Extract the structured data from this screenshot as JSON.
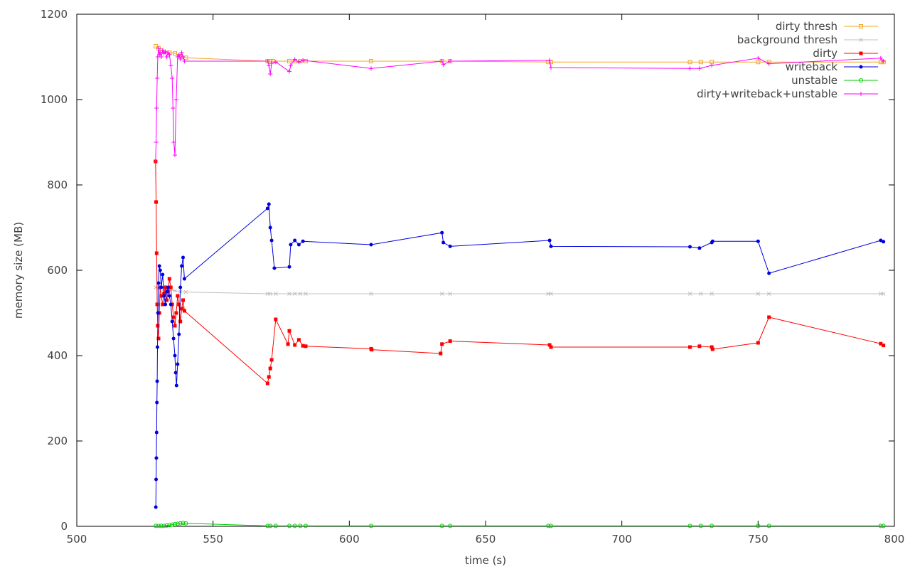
{
  "chart_data": {
    "type": "line",
    "title": "",
    "xlabel": "time (s)",
    "ylabel": "memory size (MB)",
    "xlim": [
      500,
      800
    ],
    "ylim": [
      0,
      1200
    ],
    "xticks": [
      500,
      550,
      600,
      650,
      700,
      750,
      800
    ],
    "yticks": [
      0,
      200,
      400,
      600,
      800,
      1000,
      1200
    ],
    "grid": false,
    "legend_position": "top-right",
    "series": [
      {
        "name": "dirty thresh",
        "color": "#f0a520",
        "marker": "square-open",
        "x": [
          529,
          530,
          531,
          532,
          534,
          536,
          538,
          540,
          570,
          571,
          572,
          578,
          580,
          582,
          584,
          608,
          634,
          637,
          673,
          674,
          725,
          729,
          733,
          750,
          754,
          795,
          796
        ],
        "y": [
          1125,
          1120,
          1115,
          1112,
          1110,
          1108,
          1102,
          1098,
          1090,
          1090,
          1090,
          1090,
          1090,
          1090,
          1090,
          1090,
          1090,
          1090,
          1088,
          1088,
          1088,
          1088,
          1088,
          1088,
          1088,
          1088,
          1088
        ]
      },
      {
        "name": "background thresh",
        "color": "#c0c0c0",
        "marker": "x",
        "x": [
          529,
          530,
          532,
          534,
          536,
          538,
          540,
          570,
          571,
          573,
          578,
          580,
          582,
          584,
          608,
          634,
          637,
          673,
          674,
          725,
          729,
          733,
          750,
          754,
          795,
          796
        ],
        "y": [
          560,
          558,
          556,
          554,
          552,
          550,
          549,
          545,
          545,
          545,
          545,
          545,
          545,
          545,
          545,
          545,
          545,
          545,
          545,
          545,
          545,
          545,
          545,
          545,
          545,
          545
        ]
      },
      {
        "name": "dirty",
        "color": "#ff0000",
        "marker": "square",
        "x": [
          528.9,
          529.1,
          529.3,
          529.5,
          529.7,
          530,
          530.3,
          530.6,
          531,
          531.5,
          532,
          532.5,
          533,
          533.5,
          534,
          534.5,
          535,
          535.5,
          536,
          536.5,
          537,
          537.5,
          538,
          538.5,
          539,
          539.5,
          570,
          570.5,
          571,
          571.5,
          573,
          577.5,
          578,
          580,
          581.5,
          583,
          584,
          608,
          608.2,
          633.5,
          634,
          637,
          673.5,
          674,
          725,
          728.5,
          733,
          733.3,
          750,
          754,
          795,
          796
        ],
        "y": [
          855,
          760,
          640,
          520,
          470,
          440,
          500,
          560,
          540,
          520,
          545,
          560,
          530,
          550,
          580,
          560,
          520,
          490,
          470,
          500,
          540,
          520,
          480,
          510,
          530,
          505,
          335,
          350,
          370,
          390,
          485,
          427,
          458,
          425,
          437,
          423,
          422,
          416,
          414,
          405,
          427,
          434,
          425,
          420,
          420,
          422,
          420,
          415,
          430,
          490,
          428,
          424
        ]
      },
      {
        "name": "writeback",
        "color": "#0000e0",
        "marker": "circle",
        "x": [
          529,
          529.1,
          529.2,
          529.3,
          529.4,
          529.5,
          529.6,
          529.8,
          530,
          530.3,
          530.6,
          531,
          531.5,
          532,
          532.5,
          533,
          533.5,
          534,
          534.5,
          535,
          535.5,
          536,
          536.3,
          536.6,
          537,
          537.5,
          538,
          538.5,
          539,
          539.5,
          570,
          570.5,
          571,
          571.5,
          572.5,
          578,
          578.5,
          580,
          581.5,
          583,
          608,
          634,
          634.5,
          637,
          673.5,
          674,
          725,
          728.5,
          733,
          733.3,
          750,
          754,
          795,
          796
        ],
        "y": [
          45,
          110,
          160,
          220,
          290,
          340,
          420,
          500,
          570,
          610,
          600,
          560,
          590,
          540,
          520,
          550,
          560,
          540,
          520,
          480,
          440,
          400,
          360,
          330,
          380,
          450,
          560,
          610,
          630,
          580,
          745,
          755,
          700,
          670,
          605,
          608,
          660,
          670,
          660,
          668,
          660,
          688,
          665,
          656,
          670,
          656,
          655,
          652,
          665,
          668,
          668,
          593,
          670,
          667
        ]
      },
      {
        "name": "unstable",
        "color": "#00cc00",
        "marker": "circle-open",
        "x": [
          529,
          530,
          531,
          532,
          533,
          534,
          535,
          536,
          537,
          538,
          539,
          540,
          570,
          571,
          573,
          578,
          580,
          582,
          584,
          608,
          634,
          637,
          673,
          674,
          725,
          729,
          733,
          750,
          754,
          795,
          796
        ],
        "y": [
          1,
          1,
          1,
          1,
          2,
          3,
          4,
          5,
          6,
          7,
          8,
          7,
          1,
          1,
          1,
          1,
          1,
          1,
          1,
          1,
          1,
          1,
          1,
          1,
          1,
          1,
          1,
          1,
          1,
          1,
          1
        ]
      },
      {
        "name": "dirty+writeback+unstable",
        "color": "#ff00ff",
        "marker": "plus",
        "x": [
          528.9,
          529.1,
          529.3,
          529.5,
          529.7,
          530,
          530.3,
          530.6,
          531,
          531.5,
          532,
          532.5,
          533,
          533.5,
          534,
          534.5,
          535,
          535.3,
          535.6,
          536,
          536.5,
          537,
          537.5,
          538,
          538.5,
          539,
          539.5,
          570,
          570.5,
          571,
          571.5,
          573,
          578,
          578.5,
          580,
          581.5,
          583,
          608,
          634,
          634.5,
          637,
          673.5,
          674,
          725,
          728.5,
          733,
          750,
          754,
          795,
          796
        ],
        "y": [
          855,
          900,
          980,
          1050,
          1100,
          1120,
          1105,
          1110,
          1100,
          1115,
          1108,
          1112,
          1100,
          1110,
          1105,
          1080,
          1050,
          980,
          900,
          870,
          1000,
          1100,
          1105,
          1095,
          1110,
          1100,
          1090,
          1090,
          1080,
          1060,
          1085,
          1088,
          1066,
          1080,
          1094,
          1088,
          1092,
          1073,
          1090,
          1082,
          1090,
          1092,
          1075,
          1073,
          1073,
          1080,
          1097,
          1084,
          1097,
          1090
        ]
      }
    ]
  }
}
